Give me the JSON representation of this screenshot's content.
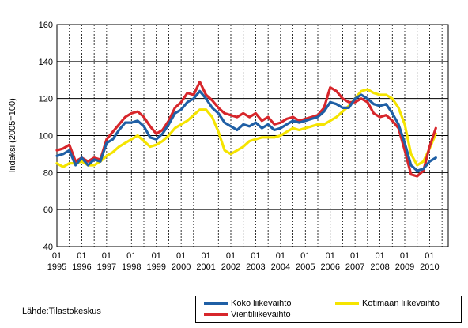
{
  "chart_data": {
    "type": "line",
    "title": "",
    "xlabel": "",
    "ylabel": "Indeksi (2005=100)",
    "ylim": [
      40,
      160
    ],
    "yticks": [
      40,
      60,
      80,
      100,
      120,
      140,
      160
    ],
    "grid": true,
    "legend_position": "bottom-right",
    "x_tick_labels": [
      {
        "month": "01",
        "year": "1995"
      },
      {
        "month": "01",
        "year": "1996"
      },
      {
        "month": "01",
        "year": "1997"
      },
      {
        "month": "01",
        "year": "1998"
      },
      {
        "month": "01",
        "year": "1999"
      },
      {
        "month": "01",
        "year": "2000"
      },
      {
        "month": "01",
        "year": "2001"
      },
      {
        "month": "01",
        "year": "2002"
      },
      {
        "month": "01",
        "year": "2003"
      },
      {
        "month": "01",
        "year": "2004"
      },
      {
        "month": "01",
        "year": "2005"
      },
      {
        "month": "01",
        "year": "2006"
      },
      {
        "month": "01",
        "year": "2007"
      },
      {
        "month": "01",
        "year": "2008"
      },
      {
        "month": "01",
        "year": "2009"
      },
      {
        "month": "01",
        "year": "2010"
      }
    ],
    "x_dates": [
      "1995-01",
      "1995-04",
      "1995-07",
      "1995-10",
      "1996-01",
      "1996-04",
      "1996-07",
      "1996-10",
      "1997-01",
      "1997-04",
      "1997-07",
      "1997-10",
      "1998-01",
      "1998-04",
      "1998-07",
      "1998-10",
      "1999-01",
      "1999-04",
      "1999-07",
      "1999-10",
      "2000-01",
      "2000-04",
      "2000-07",
      "2000-10",
      "2001-01",
      "2001-04",
      "2001-07",
      "2001-10",
      "2002-01",
      "2002-04",
      "2002-07",
      "2002-10",
      "2003-01",
      "2003-04",
      "2003-07",
      "2003-10",
      "2004-01",
      "2004-04",
      "2004-07",
      "2004-10",
      "2005-01",
      "2005-04",
      "2005-07",
      "2005-10",
      "2006-01",
      "2006-04",
      "2006-07",
      "2006-10",
      "2007-01",
      "2007-04",
      "2007-07",
      "2007-10",
      "2008-01",
      "2008-04",
      "2008-07",
      "2008-10",
      "2009-01",
      "2009-04",
      "2009-07",
      "2009-10",
      "2010-01",
      "2010-04"
    ],
    "series": [
      {
        "name": "Koko liikevaihto",
        "color": "#1f5fa5",
        "values": [
          89,
          90,
          92,
          84,
          88,
          84,
          87,
          86,
          96,
          98,
          103,
          107,
          107,
          108,
          105,
          99,
          98,
          101,
          106,
          112,
          114,
          118,
          120,
          124,
          120,
          115,
          112,
          107,
          105,
          103,
          106,
          105,
          107,
          104,
          106,
          103,
          104,
          106,
          108,
          107,
          108,
          109,
          110,
          113,
          118,
          117,
          115,
          115,
          120,
          122,
          120,
          117,
          116,
          117,
          112,
          106,
          96,
          84,
          81,
          82,
          86,
          88
        ]
      },
      {
        "name": "Kotimaan liikevaihto",
        "color": "#f5e400",
        "values": [
          85,
          83,
          85,
          85,
          86,
          84,
          84,
          86,
          89,
          91,
          94,
          96,
          98,
          100,
          97,
          94,
          95,
          97,
          100,
          104,
          106,
          108,
          111,
          114,
          114,
          110,
          102,
          92,
          90,
          92,
          94,
          97,
          98,
          99,
          99,
          99,
          100,
          102,
          104,
          103,
          104,
          105,
          106,
          106,
          108,
          110,
          113,
          116,
          120,
          124,
          125,
          123,
          122,
          122,
          120,
          115,
          106,
          90,
          84,
          86,
          93,
          101
        ]
      },
      {
        "name": "Vientiliikevaihto",
        "color": "#d7262b",
        "values": [
          92,
          93,
          95,
          86,
          88,
          86,
          88,
          87,
          98,
          102,
          106,
          110,
          112,
          113,
          110,
          105,
          101,
          103,
          108,
          115,
          118,
          123,
          122,
          129,
          122,
          119,
          115,
          112,
          111,
          110,
          112,
          110,
          112,
          108,
          110,
          106,
          107,
          109,
          110,
          108,
          109,
          110,
          111,
          115,
          126,
          124,
          120,
          118,
          118,
          120,
          118,
          112,
          110,
          111,
          108,
          104,
          92,
          79,
          78,
          81,
          94,
          104
        ]
      }
    ]
  },
  "source": "Lähde:Tilastokeskus"
}
